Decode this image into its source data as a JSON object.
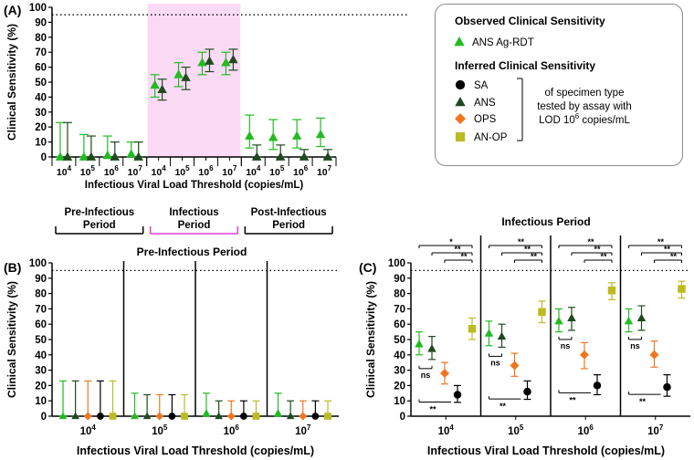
{
  "colors": {
    "ans_agrdt": "#22bb22",
    "sa": "#000000",
    "ans": "#1f4a1f",
    "ops": "#ee7722",
    "anop": "#bbbb22",
    "infectious_shade": "#fbdaf6",
    "infectious_text": "#e040d0"
  },
  "panel_labels": {
    "a": "(A)",
    "b": "(B)",
    "c": "(C)"
  },
  "legend": {
    "observed_title": "Observed Clinical Sensitivity",
    "ans_agrdt": "ANS Ag-RDT",
    "inferred_title": "Inferred Clinical Sensitivity",
    "sa": "SA",
    "ans": "ANS",
    "ops": "OPS",
    "anop": "AN-OP",
    "bracket_line1": "of specimen type",
    "bracket_line2": "tested by assay with",
    "bracket_line3_prefix": "LOD 10",
    "bracket_line3_sup": "6",
    "bracket_line3_suffix": " copies/mL"
  },
  "chart_data": [
    {
      "panel": "A",
      "type": "scatter",
      "ylabel": "Clinical Sensitivity  (%)",
      "xlabel": "Infectious Viral Load Threshold (copies/mL)",
      "ylim": [
        0,
        100
      ],
      "yticks": [
        0,
        10,
        20,
        30,
        40,
        50,
        60,
        70,
        80,
        90,
        100
      ],
      "reference_line": 95,
      "threshold_base": "10",
      "threshold_exponents": [
        "4",
        "5",
        "6",
        "7"
      ],
      "series_names": [
        "ANS Ag-RDT",
        "ANS"
      ],
      "periods": [
        {
          "name_line1": "Pre-Infectious",
          "name_line2": "Period",
          "shaded": false,
          "ans_agrdt": [
            [
              0,
              0,
              23
            ],
            [
              0,
              0,
              15
            ],
            [
              1,
              0,
              14
            ],
            [
              2,
              0,
              10
            ]
          ],
          "ans": [
            [
              0,
              0,
              23
            ],
            [
              0,
              0,
              14
            ],
            [
              0,
              0,
              10
            ],
            [
              0,
              0,
              10
            ]
          ]
        },
        {
          "name_line1": "Infectious",
          "name_line2": "Period",
          "shaded": true,
          "ans_agrdt": [
            [
              48,
              40,
              55
            ],
            [
              55,
              47,
              63
            ],
            [
              63,
              55,
              70
            ],
            [
              63,
              55,
              70
            ]
          ],
          "ans": [
            [
              45,
              38,
              52
            ],
            [
              53,
              45,
              60
            ],
            [
              64,
              57,
              72
            ],
            [
              65,
              58,
              72
            ]
          ]
        },
        {
          "name_line1": "Post-Infectious",
          "name_line2": "Period",
          "shaded": false,
          "ans_agrdt": [
            [
              14,
              6,
              28
            ],
            [
              13,
              5,
              25
            ],
            [
              14,
              6,
              25
            ],
            [
              15,
              7,
              26
            ]
          ],
          "ans": [
            [
              0,
              0,
              8
            ],
            [
              0,
              0,
              8
            ],
            [
              0,
              0,
              5
            ],
            [
              0,
              0,
              5
            ]
          ]
        }
      ]
    },
    {
      "panel": "B",
      "type": "scatter",
      "title": "Pre-Infectious Period",
      "ylabel": "Clinical Sensitivity (%)",
      "xlabel": "Infectious Viral Load Threshold (copies/mL)",
      "ylim": [
        0,
        100
      ],
      "yticks": [
        0,
        10,
        20,
        30,
        40,
        50,
        60,
        70,
        80,
        90,
        100
      ],
      "reference_line": 95,
      "threshold_base": "10",
      "threshold_exponents": [
        "4",
        "5",
        "6",
        "7"
      ],
      "series_names": [
        "ANS Ag-RDT",
        "ANS",
        "OPS",
        "SA",
        "AN-OP"
      ],
      "groups": [
        {
          "ans_agrdt": [
            0,
            0,
            23
          ],
          "ans": [
            0,
            0,
            23
          ],
          "ops": [
            0,
            0,
            23
          ],
          "sa": [
            0,
            0,
            23
          ],
          "anop": [
            0,
            0,
            23
          ]
        },
        {
          "ans_agrdt": [
            0,
            0,
            15
          ],
          "ans": [
            0,
            0,
            14
          ],
          "ops": [
            0,
            0,
            14
          ],
          "sa": [
            0,
            0,
            14
          ],
          "anop": [
            0,
            0,
            14
          ]
        },
        {
          "ans_agrdt": [
            2,
            0,
            15
          ],
          "ans": [
            0,
            0,
            10
          ],
          "ops": [
            0,
            0,
            10
          ],
          "sa": [
            0,
            0,
            10
          ],
          "anop": [
            0,
            0,
            10
          ]
        },
        {
          "ans_agrdt": [
            2,
            0,
            15
          ],
          "ans": [
            0,
            0,
            10
          ],
          "ops": [
            0,
            0,
            10
          ],
          "sa": [
            0,
            0,
            10
          ],
          "anop": [
            0,
            0,
            10
          ]
        }
      ]
    },
    {
      "panel": "C",
      "type": "scatter",
      "title": "Infectious Period",
      "ylabel": "Clinical Sensitivity (%)",
      "xlabel": "Infectious Viral Load Threshold (copies/mL)",
      "ylim": [
        0,
        100
      ],
      "yticks": [
        0,
        10,
        20,
        30,
        40,
        50,
        60,
        70,
        80,
        90,
        100
      ],
      "reference_line": 95,
      "threshold_base": "10",
      "threshold_exponents": [
        "4",
        "5",
        "6",
        "7"
      ],
      "series_names": [
        "ANS Ag-RDT",
        "ANS",
        "OPS",
        "SA",
        "AN-OP"
      ],
      "groups": [
        {
          "ans_agrdt": [
            47,
            40,
            55
          ],
          "ans": [
            44,
            37,
            52
          ],
          "ops": [
            28,
            21,
            35
          ],
          "sa": [
            14,
            9,
            20
          ],
          "anop": [
            57,
            50,
            64
          ],
          "sig_top": [
            "*",
            "**",
            "**"
          ],
          "sig_ns": "ns",
          "sig_bottom": "**"
        },
        {
          "ans_agrdt": [
            54,
            46,
            62
          ],
          "ans": [
            52,
            45,
            60
          ],
          "ops": [
            33,
            26,
            41
          ],
          "sa": [
            16,
            11,
            23
          ],
          "anop": [
            68,
            61,
            75
          ],
          "sig_top": [
            "**",
            "**",
            "**"
          ],
          "sig_ns": "ns",
          "sig_bottom": "**"
        },
        {
          "ans_agrdt": [
            62,
            55,
            70
          ],
          "ans": [
            64,
            56,
            71
          ],
          "ops": [
            40,
            31,
            48
          ],
          "sa": [
            20,
            14,
            27
          ],
          "anop": [
            82,
            76,
            87
          ],
          "sig_top": [
            "**",
            "**",
            "**"
          ],
          "sig_ns": "ns",
          "sig_bottom": "**"
        },
        {
          "ans_agrdt": [
            62,
            55,
            70
          ],
          "ans": [
            64,
            56,
            72
          ],
          "ops": [
            40,
            32,
            49
          ],
          "sa": [
            19,
            13,
            27
          ],
          "anop": [
            83,
            77,
            88
          ],
          "sig_top": [
            "**",
            "**",
            "**"
          ],
          "sig_ns": "ns",
          "sig_bottom": "**"
        }
      ]
    }
  ]
}
